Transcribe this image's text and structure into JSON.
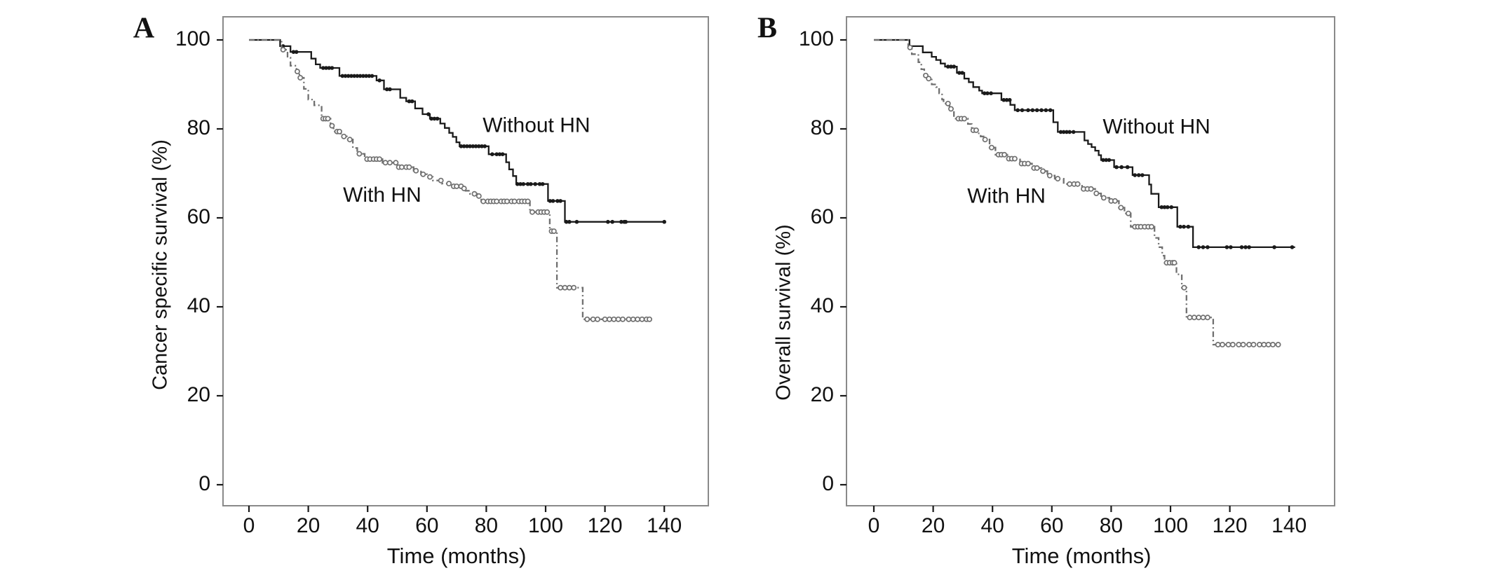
{
  "figure": {
    "background": "#ffffff",
    "axis_box_color": "#8a8a8a",
    "tick_color": "#1a1a1a",
    "text_color": "#111111",
    "panel_letters": [
      "A",
      "B"
    ]
  },
  "chart_data": [
    {
      "panel": "A",
      "type": "line",
      "chart_kind": "kaplan-meier-step",
      "title": "",
      "xlabel": "Time (months)",
      "ylabel": "Cancer specific survival (%)",
      "xticks": [
        0,
        20,
        40,
        60,
        80,
        100,
        120,
        140
      ],
      "yticks": [
        0,
        20,
        40,
        60,
        80,
        100
      ],
      "xlim": [
        0,
        154
      ],
      "ylim": [
        0,
        100
      ],
      "grid": false,
      "legend_position": "in-plot-annotations",
      "series": [
        {
          "name": "Without HN",
          "line_style": "solid",
          "color": "#1a1a1a",
          "label": {
            "text": "Without HN",
            "x": 96.9,
            "y": 80.5
          },
          "steps": [
            [
              0,
              100
            ],
            [
              10.5,
              98.6
            ],
            [
              14,
              97.3
            ],
            [
              21,
              95.8
            ],
            [
              22.5,
              94.5
            ],
            [
              24,
              93.7
            ],
            [
              30.5,
              91.9
            ],
            [
              43,
              90.9
            ],
            [
              45.5,
              88.9
            ],
            [
              51,
              87
            ],
            [
              53,
              86.2
            ],
            [
              56,
              84.6
            ],
            [
              58.5,
              83.3
            ],
            [
              61,
              82.3
            ],
            [
              64.5,
              81.2
            ],
            [
              66,
              80.2
            ],
            [
              67.5,
              79.1
            ],
            [
              68.7,
              78.2
            ],
            [
              69.9,
              77
            ],
            [
              71,
              76.1
            ],
            [
              80.8,
              74.3
            ],
            [
              86.7,
              72.5
            ],
            [
              87.7,
              70.9
            ],
            [
              89,
              69.4
            ],
            [
              90.1,
              67.6
            ],
            [
              100.8,
              63.8
            ],
            [
              106.5,
              59.1
            ],
            [
              140.3,
              59.1
            ]
          ],
          "censor_months": [
            11.5,
            15,
            16,
            25,
            26,
            27,
            28,
            31.5,
            32.5,
            33.5,
            34.5,
            35.5,
            36.5,
            37.5,
            38.5,
            39.5,
            40.5,
            41.5,
            44,
            46.5,
            47.5,
            54,
            55,
            60.5,
            61.5,
            62.5,
            63.5,
            71.5,
            72.5,
            73.5,
            74.5,
            75.5,
            76.5,
            77.5,
            78.5,
            79.5,
            82,
            83.5,
            84.5,
            85.5,
            90.5,
            91.5,
            92.5,
            94,
            95,
            96.5,
            98,
            99,
            101.5,
            102.5,
            104,
            105,
            107,
            108,
            110.5,
            121,
            122.5,
            125.5,
            126.5,
            127,
            140
          ]
        },
        {
          "name": "With HN",
          "line_style": "dash-dot",
          "color": "#707070",
          "label": {
            "text": "With HN",
            "x": 44.9,
            "y": 64.9
          },
          "steps": [
            [
              0,
              100
            ],
            [
              11,
              97.8
            ],
            [
              13,
              96
            ],
            [
              14,
              94.2
            ],
            [
              16,
              92.9
            ],
            [
              17,
              91.5
            ],
            [
              18.5,
              89
            ],
            [
              20,
              86.6
            ],
            [
              22,
              85.3
            ],
            [
              24.5,
              82.3
            ],
            [
              27.5,
              80.7
            ],
            [
              28.5,
              79.4
            ],
            [
              31,
              78.3
            ],
            [
              33,
              77.6
            ],
            [
              35,
              75.7
            ],
            [
              36.5,
              74.4
            ],
            [
              39,
              73.2
            ],
            [
              45,
              72.4
            ],
            [
              50,
              71.4
            ],
            [
              55.5,
              70.6
            ],
            [
              58,
              69.8
            ],
            [
              60,
              69.2
            ],
            [
              62,
              68.4
            ],
            [
              65,
              67.7
            ],
            [
              68,
              67.1
            ],
            [
              71.9,
              66.6
            ],
            [
              73,
              66.1
            ],
            [
              74.5,
              65.4
            ],
            [
              76.9,
              64.9
            ],
            [
              78.3,
              63.7
            ],
            [
              94.7,
              61.3
            ],
            [
              101.4,
              57
            ],
            [
              103.8,
              44.3
            ],
            [
              112.5,
              37.2
            ],
            [
              135.5,
              37.2
            ]
          ],
          "censor_months": [
            11.5,
            16.3,
            17.3,
            25,
            25.8,
            26.6,
            28,
            29.7,
            30.5,
            32,
            34,
            37.2,
            39.8,
            40.8,
            42,
            43,
            44,
            46,
            47.5,
            49.5,
            50.5,
            51.5,
            53,
            54,
            56.3,
            58.7,
            61,
            64.7,
            67.4,
            69,
            70,
            71.5,
            72.5,
            76,
            77.5,
            79,
            80.5,
            81.5,
            82.5,
            83.5,
            85,
            86,
            87,
            88.5,
            89.5,
            91,
            92,
            93,
            94,
            95.5,
            97.5,
            98.5,
            99.5,
            100.5,
            102,
            102.8,
            105,
            106.5,
            108,
            109.5,
            114,
            116,
            117.5,
            120,
            121.5,
            123,
            124.5,
            126,
            128,
            129.5,
            131,
            132.5,
            134,
            135
          ]
        }
      ]
    },
    {
      "panel": "B",
      "type": "line",
      "chart_kind": "kaplan-meier-step",
      "title": "",
      "xlabel": "Time (months)",
      "ylabel": "Overall survival (%)",
      "xticks": [
        0,
        20,
        40,
        60,
        80,
        100,
        120,
        140
      ],
      "yticks": [
        0,
        20,
        40,
        60,
        80,
        100
      ],
      "xlim": [
        0,
        155
      ],
      "ylim": [
        0,
        100
      ],
      "grid": false,
      "legend_position": "in-plot-annotations",
      "series": [
        {
          "name": "Without HN",
          "line_style": "solid",
          "color": "#1a1a1a",
          "label": {
            "text": "Without HN",
            "x": 95.3,
            "y": 80.2
          },
          "steps": [
            [
              0,
              100
            ],
            [
              12,
              98.6
            ],
            [
              16.5,
              97.2
            ],
            [
              19.5,
              96.2
            ],
            [
              21,
              95.5
            ],
            [
              22.5,
              94.7
            ],
            [
              24,
              94
            ],
            [
              28,
              92.6
            ],
            [
              30.5,
              91.3
            ],
            [
              32,
              90.5
            ],
            [
              33.5,
              89.4
            ],
            [
              35.5,
              88.6
            ],
            [
              36.5,
              88
            ],
            [
              43,
              86.5
            ],
            [
              46,
              85.4
            ],
            [
              47.5,
              84.2
            ],
            [
              60.5,
              81.5
            ],
            [
              62,
              79.3
            ],
            [
              71,
              77.4
            ],
            [
              72.2,
              76.6
            ],
            [
              73.4,
              75.9
            ],
            [
              74.6,
              75.1
            ],
            [
              75.8,
              74.1
            ],
            [
              76.6,
              73
            ],
            [
              81,
              71.4
            ],
            [
              87.2,
              69.6
            ],
            [
              92.8,
              67.5
            ],
            [
              93.5,
              65.4
            ],
            [
              96,
              62.4
            ],
            [
              102.3,
              58
            ],
            [
              107.6,
              53.4
            ],
            [
              142,
              53.4
            ]
          ],
          "censor_months": [
            25,
            26,
            27,
            28.8,
            29.8,
            37.3,
            38.3,
            39.5,
            43.8,
            44.8,
            45.8,
            48.5,
            50,
            52,
            53.5,
            55,
            56.5,
            58,
            59.5,
            63,
            64,
            65,
            66,
            67.3,
            77.3,
            78.3,
            79.3,
            81.8,
            83.5,
            85.5,
            88,
            89.3,
            90.5,
            97,
            98,
            99,
            100.3,
            103.3,
            104.5,
            106,
            109.5,
            111,
            112.5,
            119,
            120.3,
            124,
            125.3,
            126.5,
            135,
            141
          ]
        },
        {
          "name": "With HN",
          "line_style": "dash-dot",
          "color": "#707070",
          "label": {
            "text": "With HN",
            "x": 44.7,
            "y": 64.6
          },
          "steps": [
            [
              0,
              100
            ],
            [
              11.6,
              98.3
            ],
            [
              12.8,
              96.8
            ],
            [
              15,
              95
            ],
            [
              16,
              93.4
            ],
            [
              17,
              92
            ],
            [
              18,
              91.3
            ],
            [
              19.5,
              90
            ],
            [
              21,
              89.4
            ],
            [
              22,
              88
            ],
            [
              23,
              86.6
            ],
            [
              23.5,
              85.7
            ],
            [
              25.5,
              84.5
            ],
            [
              27,
              82.3
            ],
            [
              31.7,
              81.1
            ],
            [
              33,
              79.7
            ],
            [
              35,
              79
            ],
            [
              36,
              78.3
            ],
            [
              37,
              77.6
            ],
            [
              39,
              75.8
            ],
            [
              41,
              74.2
            ],
            [
              45,
              73.3
            ],
            [
              49.3,
              72.2
            ],
            [
              53.3,
              71.2
            ],
            [
              56.5,
              70.5
            ],
            [
              58.5,
              69.5
            ],
            [
              61,
              68.8
            ],
            [
              64,
              67.6
            ],
            [
              70.2,
              66.5
            ],
            [
              74.6,
              65.5
            ],
            [
              76.6,
              64.5
            ],
            [
              79.4,
              63.8
            ],
            [
              82.6,
              62.3
            ],
            [
              84.5,
              61
            ],
            [
              86.6,
              58
            ],
            [
              94.6,
              55.5
            ],
            [
              96,
              53.4
            ],
            [
              97.2,
              51.5
            ],
            [
              98,
              49.9
            ],
            [
              102,
              47.3
            ],
            [
              103.8,
              44.3
            ],
            [
              105.4,
              37.6
            ],
            [
              114.4,
              31.5
            ],
            [
              137,
              31.5
            ]
          ],
          "censor_months": [
            12.2,
            17.5,
            18.5,
            25,
            26,
            28.5,
            29.5,
            30.5,
            33.5,
            34.5,
            37.5,
            39.7,
            42,
            43,
            44,
            45.5,
            46.5,
            47.5,
            49.8,
            50.8,
            52,
            54,
            55,
            57,
            59.3,
            62,
            66,
            67.5,
            68.7,
            70.7,
            72,
            73.2,
            75,
            77.5,
            80,
            81.3,
            83.3,
            85.8,
            88,
            89,
            90,
            91.3,
            92.5,
            93.6,
            98.7,
            99.7,
            100.7,
            101.3,
            104.6,
            106.5,
            108,
            109.5,
            111,
            112.5,
            116,
            117.5,
            119.5,
            121,
            123,
            124.5,
            126.5,
            128,
            130,
            131.5,
            133,
            134.5,
            136.3
          ]
        }
      ]
    }
  ]
}
